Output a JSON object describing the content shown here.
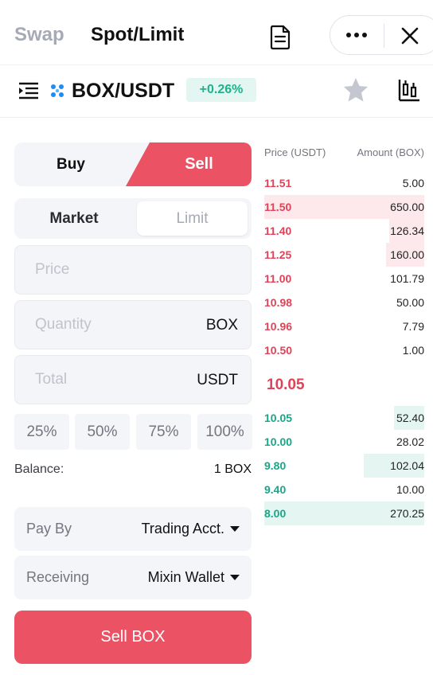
{
  "header": {
    "tab_swap": "Swap",
    "tab_spot": "Spot/Limit"
  },
  "pair": {
    "name": "BOX/USDT",
    "change": "+0.26%",
    "change_color": "#1eb38a"
  },
  "order_form": {
    "buy_label": "Buy",
    "sell_label": "Sell",
    "market_label": "Market",
    "limit_label": "Limit",
    "price_placeholder": "Price",
    "quantity_placeholder": "Quantity",
    "quantity_unit": "BOX",
    "total_placeholder": "Total",
    "total_unit": "USDT",
    "percents": [
      "25%",
      "50%",
      "75%",
      "100%"
    ],
    "balance_label": "Balance:",
    "balance_value": "1 BOX",
    "pay_by_label": "Pay By",
    "pay_by_value": "Trading Acct.",
    "receiving_label": "Receiving",
    "receiving_value": "Mixin Wallet",
    "submit_label": "Sell BOX",
    "sell_color": "#eb5365"
  },
  "order_book": {
    "price_header": "Price (USDT)",
    "amount_header": "Amount (BOX)",
    "asks": [
      {
        "price": "11.51",
        "amount": "5.00",
        "depth": 0
      },
      {
        "price": "11.50",
        "amount": "650.00",
        "depth": 1.0
      },
      {
        "price": "11.40",
        "amount": "126.34",
        "depth": 0.22
      },
      {
        "price": "11.25",
        "amount": "160.00",
        "depth": 0.24
      },
      {
        "price": "11.00",
        "amount": "101.79",
        "depth": 0
      },
      {
        "price": "10.98",
        "amount": "50.00",
        "depth": 0
      },
      {
        "price": "10.96",
        "amount": "7.79",
        "depth": 0
      },
      {
        "price": "10.50",
        "amount": "1.00",
        "depth": 0
      }
    ],
    "last_price": "10.05",
    "bids": [
      {
        "price": "10.05",
        "amount": "52.40",
        "depth": 0.19
      },
      {
        "price": "10.00",
        "amount": "28.02",
        "depth": 0
      },
      {
        "price": "9.80",
        "amount": "102.04",
        "depth": 0.38
      },
      {
        "price": "9.40",
        "amount": "10.00",
        "depth": 0
      },
      {
        "price": "8.00",
        "amount": "270.25",
        "depth": 1.0
      }
    ],
    "ask_color": "#e04358",
    "bid_color": "#14a88a"
  }
}
